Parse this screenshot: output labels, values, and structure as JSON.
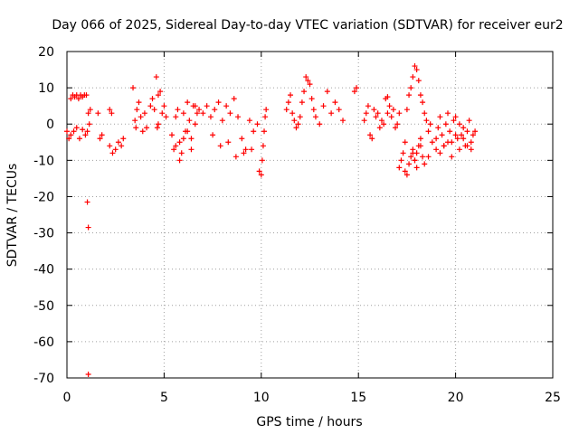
{
  "chart_data": {
    "type": "scatter",
    "title": "Day 066 of 2025, Sidereal Day-to-day VTEC variation (SDTVAR) for receiver eur2",
    "xlabel": "GPS time / hours",
    "ylabel": "SDTVAR / TECUs",
    "xlim": [
      0,
      25
    ],
    "ylim": [
      -70,
      20
    ],
    "xticks": [
      0,
      5,
      10,
      15,
      20,
      25
    ],
    "yticks": [
      20,
      10,
      0,
      -10,
      -20,
      -30,
      -40,
      -50,
      -60,
      -70
    ],
    "grid": true,
    "marker": "+",
    "color": "#ff0000",
    "series": [
      {
        "name": "SDTVAR",
        "x": [
          0.0,
          0.1,
          0.2,
          0.3,
          0.4,
          0.5,
          0.6,
          0.7,
          0.8,
          0.9,
          1.0,
          1.1,
          1.2,
          0.2,
          0.35,
          0.5,
          0.65,
          0.8,
          0.95,
          1.05,
          1.15,
          1.05,
          1.1,
          1.1,
          1.6,
          1.7,
          1.8,
          2.2,
          2.3,
          2.2,
          2.35,
          2.5,
          2.65,
          2.8,
          2.9,
          3.4,
          3.5,
          3.55,
          3.6,
          3.7,
          3.8,
          3.9,
          4.0,
          4.1,
          4.3,
          4.4,
          4.5,
          4.6,
          4.7,
          4.8,
          4.9,
          5.0,
          5.1,
          4.65,
          4.7,
          5.4,
          5.5,
          5.6,
          5.7,
          5.8,
          5.9,
          6.0,
          6.1,
          6.2,
          6.3,
          6.4,
          6.5,
          6.6,
          6.7,
          6.8,
          5.6,
          5.8,
          6.0,
          6.2,
          6.4,
          6.6,
          7.0,
          7.2,
          7.4,
          7.6,
          7.8,
          8.0,
          8.2,
          8.4,
          8.6,
          8.8,
          9.0,
          9.2,
          9.4,
          9.6,
          9.8,
          7.5,
          7.9,
          8.3,
          8.7,
          9.1,
          9.5,
          9.9,
          10.0,
          10.05,
          10.1,
          10.15,
          10.2,
          10.25,
          11.3,
          11.4,
          11.5,
          11.6,
          11.7,
          11.8,
          11.9,
          12.0,
          12.1,
          12.2,
          12.3,
          12.4,
          12.5,
          12.6,
          12.7,
          12.8,
          13.0,
          13.2,
          13.4,
          13.6,
          13.8,
          14.0,
          14.2,
          14.8,
          14.9,
          15.3,
          15.4,
          15.5,
          15.6,
          15.7,
          15.8,
          15.9,
          16.0,
          16.1,
          16.2,
          16.3,
          16.4,
          16.5,
          16.6,
          16.7,
          16.8,
          16.9,
          17.0,
          17.1,
          16.5,
          17.1,
          17.2,
          17.3,
          17.4,
          17.5,
          17.6,
          17.7,
          17.8,
          17.9,
          18.0,
          18.1,
          18.2,
          18.3,
          18.4,
          18.5,
          18.6,
          18.7,
          17.8,
          17.9,
          18.0,
          18.1,
          18.2,
          18.3,
          17.4,
          17.5,
          17.6,
          17.7,
          17.8,
          17.9,
          18.0,
          18.2,
          18.4,
          18.6,
          18.8,
          19.0,
          19.0,
          19.1,
          19.2,
          19.3,
          19.4,
          19.5,
          19.6,
          19.7,
          19.8,
          19.9,
          20.0,
          20.1,
          20.2,
          20.3,
          20.4,
          20.5,
          20.6,
          20.7,
          20.8,
          20.9,
          21.0,
          19.2,
          19.4,
          19.6,
          19.8,
          20.0,
          20.2,
          20.4,
          20.6,
          20.8
        ],
        "y": [
          -2,
          -4,
          7,
          8,
          7.5,
          8,
          7,
          8,
          7.5,
          8,
          8,
          3,
          4,
          -3,
          -2,
          -1,
          -4,
          -1.5,
          -3,
          -2,
          0,
          -21.5,
          -28.5,
          -69,
          3,
          -4,
          -3,
          4,
          3,
          -6,
          -8,
          -7,
          -5,
          -6,
          -4,
          10,
          1,
          -1,
          4,
          6,
          2,
          -2,
          3,
          -1,
          5,
          7,
          4,
          13,
          8,
          9,
          3,
          5,
          2,
          -1,
          0,
          -3,
          -7,
          2,
          4,
          -5,
          -8,
          3,
          -2,
          6,
          1,
          -4,
          5,
          0,
          3,
          4,
          -6,
          -10,
          -4,
          -2,
          -7,
          5,
          3,
          5,
          2,
          4,
          6,
          1,
          5,
          3,
          7,
          2,
          -4,
          -7,
          1,
          -2,
          0,
          -3,
          -6,
          -5,
          -9,
          -8,
          -7,
          -13,
          -14,
          -10,
          -6,
          -2,
          2,
          4,
          4,
          6,
          8,
          3,
          1,
          -1,
          0,
          2,
          6,
          9,
          13,
          12,
          11,
          7,
          4,
          2,
          0,
          5,
          9,
          3,
          6,
          4,
          1,
          9,
          10,
          1,
          3,
          5,
          -3,
          -4,
          4,
          2,
          3,
          -1,
          1,
          0,
          7,
          3,
          5,
          2,
          4,
          -1,
          0,
          3,
          7.5,
          -12,
          -10,
          -8,
          -5,
          4,
          8,
          10,
          13,
          16,
          15,
          12,
          8,
          6,
          3,
          1,
          -2,
          0,
          -8,
          -10,
          -12,
          -6,
          -4,
          -9,
          -13,
          -14,
          -11,
          -9,
          -7,
          -10,
          -8,
          -6,
          -11,
          -9,
          -5,
          -7,
          -4,
          -1,
          2,
          -3,
          -6,
          0,
          3,
          -2,
          -5,
          1,
          2,
          -4,
          0,
          -3,
          -1,
          -6,
          -2,
          1,
          -7,
          -3,
          -2,
          -8,
          -6,
          -5,
          -9,
          -3,
          -7,
          -4,
          -6,
          -5
        ]
      }
    ]
  }
}
